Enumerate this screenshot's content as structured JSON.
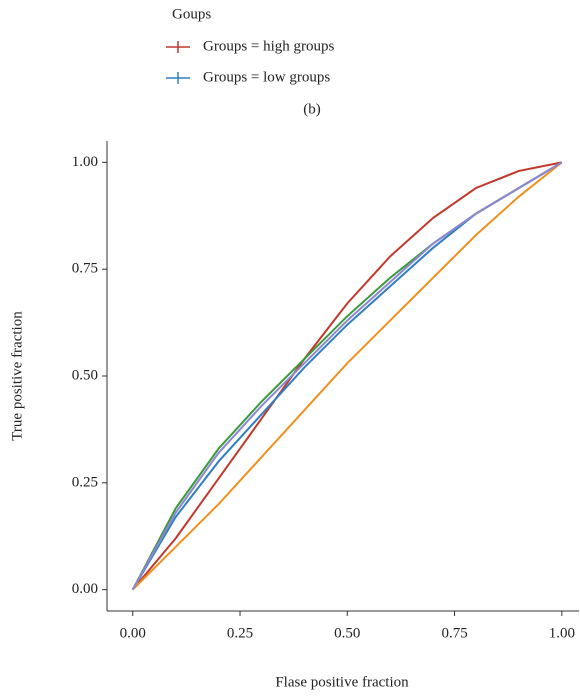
{
  "chart_data": {
    "type": "line",
    "legend_title": "Goups",
    "subtitle": "(b)",
    "x_label": "Flase positive fraction",
    "y_label": "True positive fraction",
    "x": [
      0,
      0.1,
      0.2,
      0.3,
      0.4,
      0.5,
      0.6,
      0.7,
      0.8,
      0.9,
      1
    ],
    "series": [
      {
        "name": "Groups = high groups",
        "color": "#c0392b",
        "values": [
          0,
          0.12,
          0.26,
          0.4,
          0.54,
          0.67,
          0.78,
          0.87,
          0.94,
          0.98,
          1
        ]
      },
      {
        "name": "Groups = low groups",
        "color": "#2f7fc1",
        "values": [
          0,
          0.17,
          0.3,
          0.41,
          0.52,
          0.62,
          0.71,
          0.8,
          0.88,
          0.94,
          1
        ]
      },
      {
        "color": "#3a9a3a",
        "values": [
          0,
          0.19,
          0.33,
          0.44,
          0.54,
          0.64,
          0.73,
          0.81,
          0.88,
          0.94,
          1
        ]
      },
      {
        "color": "#f0901e",
        "values": [
          0,
          0.1,
          0.2,
          0.31,
          0.42,
          0.53,
          0.63,
          0.73,
          0.83,
          0.92,
          1
        ]
      },
      {
        "color": "#8e86d4",
        "values": [
          0,
          0.18,
          0.32,
          0.43,
          0.53,
          0.63,
          0.72,
          0.81,
          0.88,
          0.94,
          1
        ]
      }
    ],
    "xlim": [
      -0.06,
      1.04
    ],
    "ylim": [
      -0.05,
      1.05
    ],
    "xticks": [
      {
        "value": 0,
        "label": "0.00"
      },
      {
        "value": 0.25,
        "label": "0.25"
      },
      {
        "value": 0.5,
        "label": "0.50"
      },
      {
        "value": 0.75,
        "label": "0.75"
      },
      {
        "value": 1,
        "label": "1.00"
      }
    ],
    "yticks": [
      {
        "value": 0,
        "label": "0.00"
      },
      {
        "value": 0.25,
        "label": "0.25"
      },
      {
        "value": 0.5,
        "label": "0.50"
      },
      {
        "value": 0.75,
        "label": "0.75"
      },
      {
        "value": 1,
        "label": "1.00"
      }
    ],
    "grid": false
  }
}
